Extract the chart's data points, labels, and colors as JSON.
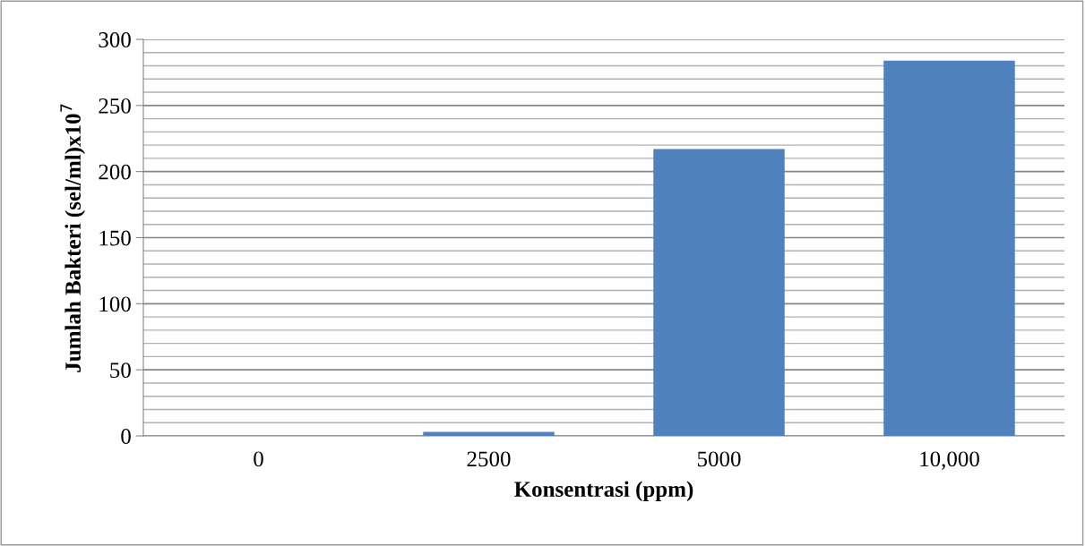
{
  "chart_data": {
    "type": "bar",
    "xlabel": "Konsentrasi (ppm)",
    "ylabel": "Jumlah Bakteri (sel/ml)x10$^{7}$",
    "categories": [
      "0",
      "2500",
      "5000",
      "10,000"
    ],
    "values": [
      0,
      3,
      217,
      284
    ],
    "color": "#4f81bd",
    "ylim": [
      0,
      300
    ],
    "yticks": [
      0,
      50,
      100,
      150,
      200,
      250,
      300
    ],
    "grid": "y"
  }
}
